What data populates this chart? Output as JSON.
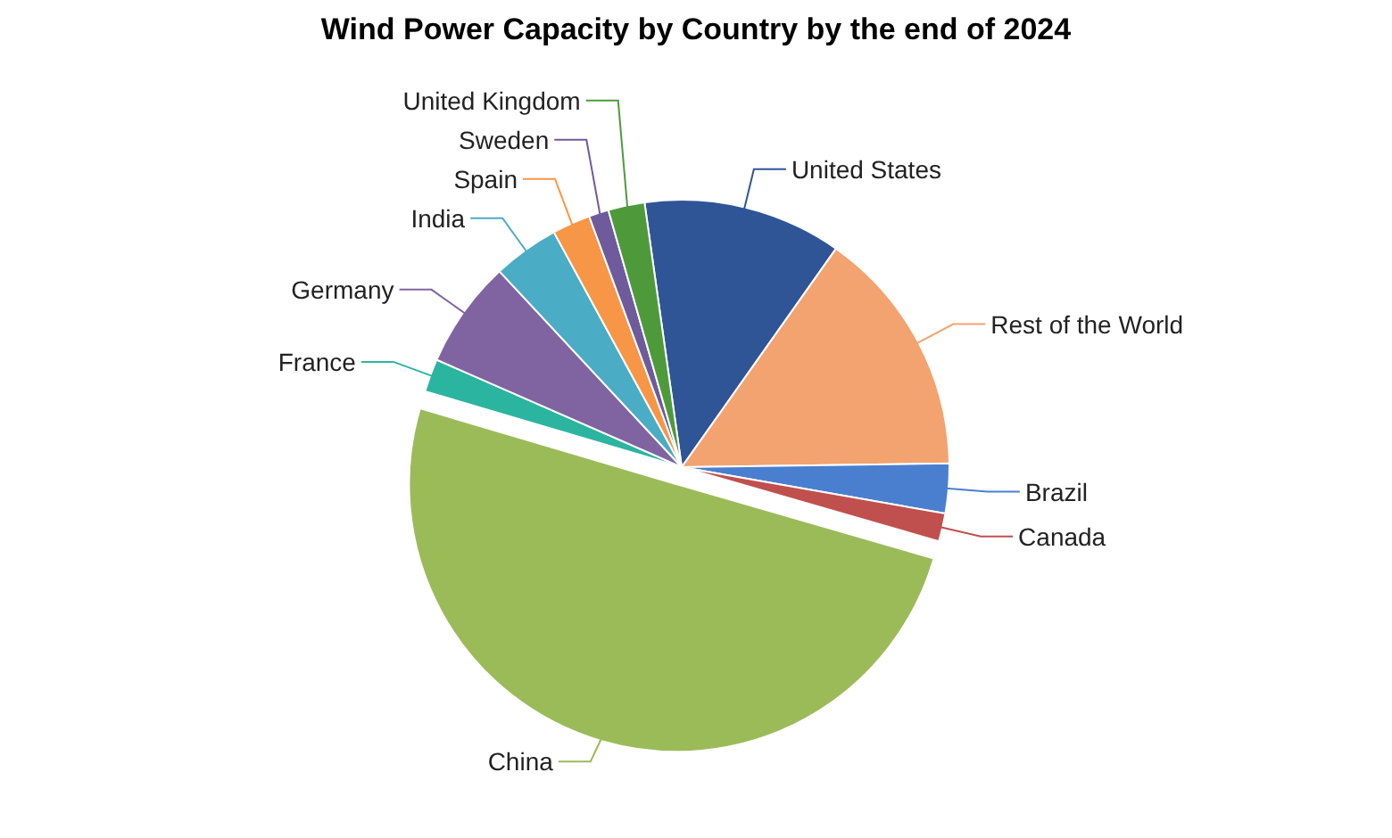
{
  "chart_data": {
    "type": "pie",
    "title": "Wind Power Capacity by Country by the end of 2024",
    "categories": [
      "United States",
      "Rest of the World",
      "Brazil",
      "Canada",
      "China",
      "France",
      "Germany",
      "India",
      "Spain",
      "Sweden",
      "United Kingdom"
    ],
    "values": [
      12,
      15,
      3,
      1.7,
      50.1,
      2,
      6.5,
      4,
      2.3,
      1.2,
      2.2
    ],
    "colors": [
      "#2f5597",
      "#f2a36f",
      "#4a7fd0",
      "#c0504d",
      "#9bbb59",
      "#2bb5a0",
      "#8064a2",
      "#4bacc6",
      "#f79646",
      "#6f5a9c",
      "#4e9a3a"
    ]
  }
}
